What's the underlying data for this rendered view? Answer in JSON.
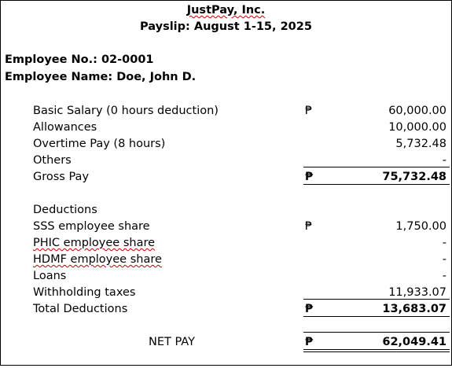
{
  "header": {
    "company": "JustPay, Inc.",
    "period": "Payslip: August 1-15, 2025"
  },
  "employee": {
    "number_label": "Employee No.: 02-0001",
    "name_label": "Employee Name: Doe, John D."
  },
  "currency_symbol": "₱",
  "earnings": [
    {
      "label": "Basic Salary (0 hours deduction)",
      "amount": "60,000.00",
      "show_currency": true
    },
    {
      "label": "Allowances",
      "amount": "10,000.00",
      "show_currency": false
    },
    {
      "label": "Overtime Pay (8 hours)",
      "amount": "5,732.48",
      "show_currency": false
    },
    {
      "label": "Others",
      "amount": "-",
      "show_currency": false
    }
  ],
  "gross": {
    "label": "Gross Pay",
    "amount": "75,732.48"
  },
  "deductions_heading": "Deductions",
  "deductions": [
    {
      "label": "SSS employee share",
      "amount": "1,750.00",
      "show_currency": true
    },
    {
      "label": "PHIC employee share",
      "amount": "-",
      "show_currency": false
    },
    {
      "label": "HDMF employee share",
      "amount": "-",
      "show_currency": false
    },
    {
      "label": "Loans",
      "amount": "-",
      "show_currency": false
    },
    {
      "label": "Withholding taxes",
      "amount": "11,933.07",
      "show_currency": false
    }
  ],
  "total_deductions": {
    "label": "Total Deductions",
    "amount": "13,683.07"
  },
  "net": {
    "label": "NET PAY",
    "amount": "62,049.41"
  }
}
